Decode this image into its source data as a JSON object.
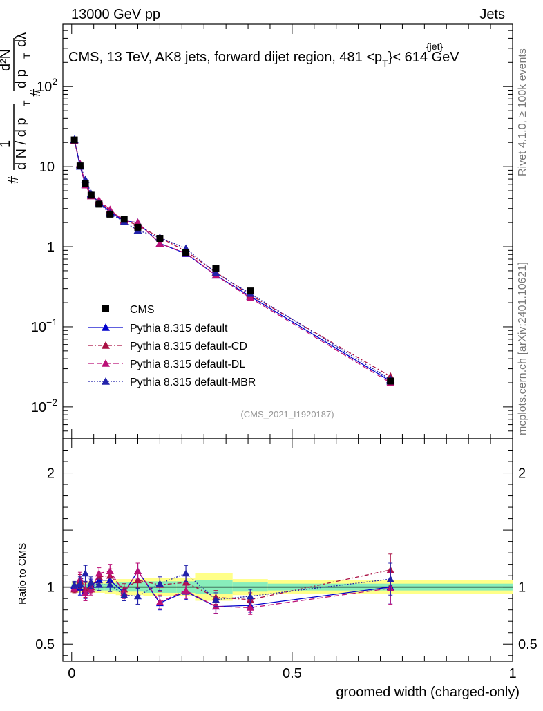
{
  "header": {
    "left": "13000 GeV pp",
    "right": "Jets",
    "side_text": "Rivet 4.1.0, ≥ 100k events",
    "side_text2": "mcplots.cern.ch [arXiv:2401.10621]"
  },
  "chart_data": {
    "type": "line",
    "title": "CMS, 13 TeV, AK8 jets, forward dijet region, 481 <p_T^{jet}< 614 GeV",
    "title_parts": {
      "main": "CMS, 13 TeV, AK8 jets, forward dijet region, 481 <p",
      "sub": "T",
      "sup": "{jet}",
      "tail": "}< 614 GeV"
    },
    "analysis_label": "(CMS_2021_I1920187)",
    "xlabel": "groomed width (charged-only)",
    "ylabel_parts": {
      "hash1": "#",
      "one": "1",
      "dN": "d N / d p",
      "T": "T",
      "hash2": "#",
      "d2N": "d²N",
      "dpT": "d p",
      "T2": "T",
      "dlambda": "dλ"
    },
    "ratio_ylabel": "Ratio to CMS",
    "xlim": [
      -0.02,
      1.0
    ],
    "ylim": [
      0.004,
      600
    ],
    "ratio_ylim": [
      0.35,
      2.3
    ],
    "x_ticks": [
      0,
      0.5,
      1
    ],
    "x_tick_labels": [
      "0",
      "0.5",
      "1"
    ],
    "y_ticks": [
      {
        "value": 0.01,
        "base": "10",
        "exp": "−2"
      },
      {
        "value": 0.1,
        "base": "10",
        "exp": "−1"
      },
      {
        "value": 1,
        "base": "1",
        "exp": ""
      },
      {
        "value": 10,
        "base": "10",
        "exp": ""
      },
      {
        "value": 100,
        "base": "10",
        "exp": "2"
      }
    ],
    "ratio_ticks": [
      {
        "value": 0.5,
        "label": "0.5"
      },
      {
        "value": 1,
        "label": "1"
      },
      {
        "value": 2,
        "label": "2"
      }
    ],
    "x": [
      0.006,
      0.019,
      0.031,
      0.044,
      0.062,
      0.087,
      0.119,
      0.15,
      0.2,
      0.259,
      0.327,
      0.405,
      0.723
    ],
    "bin_edges": [
      0.0,
      0.0125,
      0.025,
      0.0375,
      0.05,
      0.075,
      0.1,
      0.1375,
      0.1625,
      0.2375,
      0.28,
      0.365,
      0.445,
      1.0
    ],
    "series": [
      {
        "name": "CMS",
        "color": "#000000",
        "marker": "square",
        "dash": "none",
        "values": [
          21.5,
          10.2,
          6.2,
          4.4,
          3.4,
          2.55,
          2.2,
          1.75,
          1.27,
          0.85,
          0.53,
          0.28,
          0.021
        ],
        "ratio": [
          1,
          1,
          1,
          1,
          1,
          1,
          1,
          1,
          1,
          1,
          1,
          1,
          1
        ]
      },
      {
        "name": "Pythia 8.315 default",
        "color": "#0000cc",
        "marker": "triangle",
        "dash": "none",
        "values": [
          21.8,
          10.1,
          6.0,
          4.5,
          3.6,
          2.7,
          2.1,
          2.0,
          1.1,
          0.82,
          0.44,
          0.24,
          0.021
        ],
        "ratio": [
          1.01,
          0.99,
          0.97,
          1.02,
          1.06,
          1.06,
          0.95,
          1.14,
          0.86,
          0.96,
          0.83,
          0.84,
          1.0
        ]
      },
      {
        "name": "Pythia 8.315 default-CD",
        "color": "#aa1144",
        "marker": "triangle",
        "dash": "6,3,2,3",
        "values": [
          21.0,
          10.7,
          6.1,
          4.4,
          3.7,
          2.8,
          2.15,
          1.85,
          1.3,
          0.88,
          0.48,
          0.25,
          0.024
        ],
        "ratio": [
          0.98,
          1.05,
          0.98,
          1.0,
          1.09,
          1.1,
          0.98,
          1.06,
          1.02,
          1.04,
          0.91,
          0.89,
          1.15
        ]
      },
      {
        "name": "Pythia 8.315 default-DL",
        "color": "#bb1177",
        "marker": "triangle",
        "dash": "8,4",
        "values": [
          21.2,
          10.9,
          5.9,
          4.3,
          3.8,
          2.9,
          2.1,
          2.0,
          1.1,
          0.83,
          0.44,
          0.23,
          0.02
        ],
        "ratio": [
          0.99,
          1.07,
          0.95,
          0.98,
          1.12,
          1.14,
          0.95,
          1.14,
          0.87,
          0.97,
          0.83,
          0.82,
          0.99
        ]
      },
      {
        "name": "Pythia 8.315 default-MBR",
        "color": "#2222aa",
        "marker": "triangle",
        "dash": "2,2",
        "values": [
          21.6,
          10.5,
          6.9,
          4.6,
          3.5,
          2.6,
          2.05,
          1.6,
          1.3,
          0.95,
          0.47,
          0.26,
          0.022
        ],
        "ratio": [
          1.02,
          1.03,
          1.12,
          1.04,
          1.02,
          1.02,
          0.93,
          0.92,
          1.03,
          1.12,
          0.89,
          0.92,
          1.07
        ]
      }
    ],
    "ratio_errors": [
      0.03,
      0.06,
      0.07,
      0.05,
      0.05,
      0.06,
      0.05,
      0.07,
      0.06,
      0.07,
      0.06,
      0.06,
      0.14
    ],
    "band_inner": [
      0.03,
      0.03,
      0.03,
      0.03,
      0.03,
      0.03,
      0.04,
      0.04,
      0.05,
      0.05,
      0.06,
      0.04,
      0.03
    ],
    "band_outer": [
      0.05,
      0.05,
      0.05,
      0.05,
      0.05,
      0.06,
      0.07,
      0.07,
      0.08,
      0.08,
      0.12,
      0.07,
      0.06
    ]
  }
}
